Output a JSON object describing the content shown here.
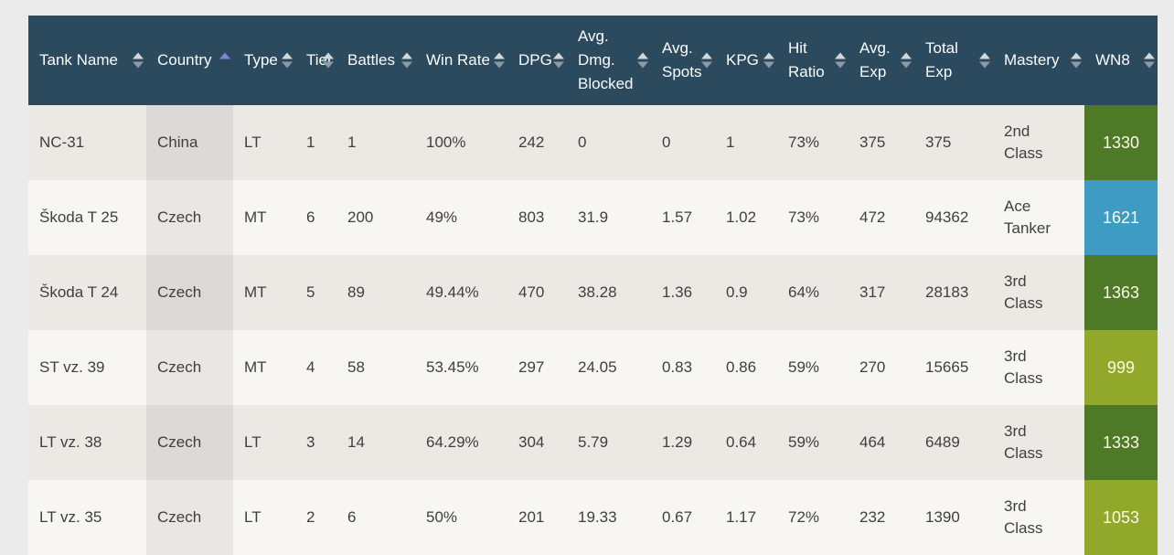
{
  "colors": {
    "header_bg": "#2b4a5e",
    "sort_active_arrow": "#7f85dc",
    "wn8_green": "#4e7a28",
    "wn8_blue": "#3e9cc4",
    "wn8_olive": "#91a82b",
    "row_odd_bg": "#ece9e5",
    "row_even_bg": "#f7f6f5"
  },
  "table": {
    "columns": [
      {
        "label": "Tank Name",
        "sort": "none"
      },
      {
        "label": "Country",
        "sort": "asc"
      },
      {
        "label": "Type",
        "sort": "none"
      },
      {
        "label": "Tier",
        "sort": "none"
      },
      {
        "label": "Battles",
        "sort": "none"
      },
      {
        "label": "Win Rate",
        "sort": "none"
      },
      {
        "label": "DPG",
        "sort": "none"
      },
      {
        "label": "Avg. Dmg. Blocked",
        "sort": "none"
      },
      {
        "label": "Avg. Spots",
        "sort": "none"
      },
      {
        "label": "KPG",
        "sort": "none"
      },
      {
        "label": "Hit Ratio",
        "sort": "none"
      },
      {
        "label": "Avg. Exp",
        "sort": "none"
      },
      {
        "label": "Total Exp",
        "sort": "none"
      },
      {
        "label": "Mastery",
        "sort": "none"
      },
      {
        "label": "WN8",
        "sort": "none"
      }
    ],
    "rows": [
      {
        "tank_name": "NC-31",
        "country": "China",
        "type": "LT",
        "tier": "1",
        "battles": "1",
        "win_rate": "100%",
        "dpg": "242",
        "avg_dmg_blocked": "0",
        "avg_spots": "0",
        "kpg": "1",
        "hit_ratio": "73%",
        "avg_exp": "375",
        "total_exp": "375",
        "mastery": "2nd Class",
        "wn8": "1330",
        "wn8_color": "#4e7a28"
      },
      {
        "tank_name": "Škoda T 25",
        "country": "Czech",
        "type": "MT",
        "tier": "6",
        "battles": "200",
        "win_rate": "49%",
        "dpg": "803",
        "avg_dmg_blocked": "31.9",
        "avg_spots": "1.57",
        "kpg": "1.02",
        "hit_ratio": "73%",
        "avg_exp": "472",
        "total_exp": "94362",
        "mastery": "Ace Tanker",
        "wn8": "1621",
        "wn8_color": "#3e9cc4"
      },
      {
        "tank_name": "Škoda T 24",
        "country": "Czech",
        "type": "MT",
        "tier": "5",
        "battles": "89",
        "win_rate": "49.44%",
        "dpg": "470",
        "avg_dmg_blocked": "38.28",
        "avg_spots": "1.36",
        "kpg": "0.9",
        "hit_ratio": "64%",
        "avg_exp": "317",
        "total_exp": "28183",
        "mastery": "3rd Class",
        "wn8": "1363",
        "wn8_color": "#4e7a28"
      },
      {
        "tank_name": "ST vz. 39",
        "country": "Czech",
        "type": "MT",
        "tier": "4",
        "battles": "58",
        "win_rate": "53.45%",
        "dpg": "297",
        "avg_dmg_blocked": "24.05",
        "avg_spots": "0.83",
        "kpg": "0.86",
        "hit_ratio": "59%",
        "avg_exp": "270",
        "total_exp": "15665",
        "mastery": "3rd Class",
        "wn8": "999",
        "wn8_color": "#91a82b"
      },
      {
        "tank_name": "LT vz. 38",
        "country": "Czech",
        "type": "LT",
        "tier": "3",
        "battles": "14",
        "win_rate": "64.29%",
        "dpg": "304",
        "avg_dmg_blocked": "5.79",
        "avg_spots": "1.29",
        "kpg": "0.64",
        "hit_ratio": "59%",
        "avg_exp": "464",
        "total_exp": "6489",
        "mastery": "3rd Class",
        "wn8": "1333",
        "wn8_color": "#4e7a28"
      },
      {
        "tank_name": "LT vz. 35",
        "country": "Czech",
        "type": "LT",
        "tier": "2",
        "battles": "6",
        "win_rate": "50%",
        "dpg": "201",
        "avg_dmg_blocked": "19.33",
        "avg_spots": "0.67",
        "kpg": "1.17",
        "hit_ratio": "72%",
        "avg_exp": "232",
        "total_exp": "1390",
        "mastery": "3rd Class",
        "wn8": "1053",
        "wn8_color": "#91a82b"
      }
    ]
  }
}
